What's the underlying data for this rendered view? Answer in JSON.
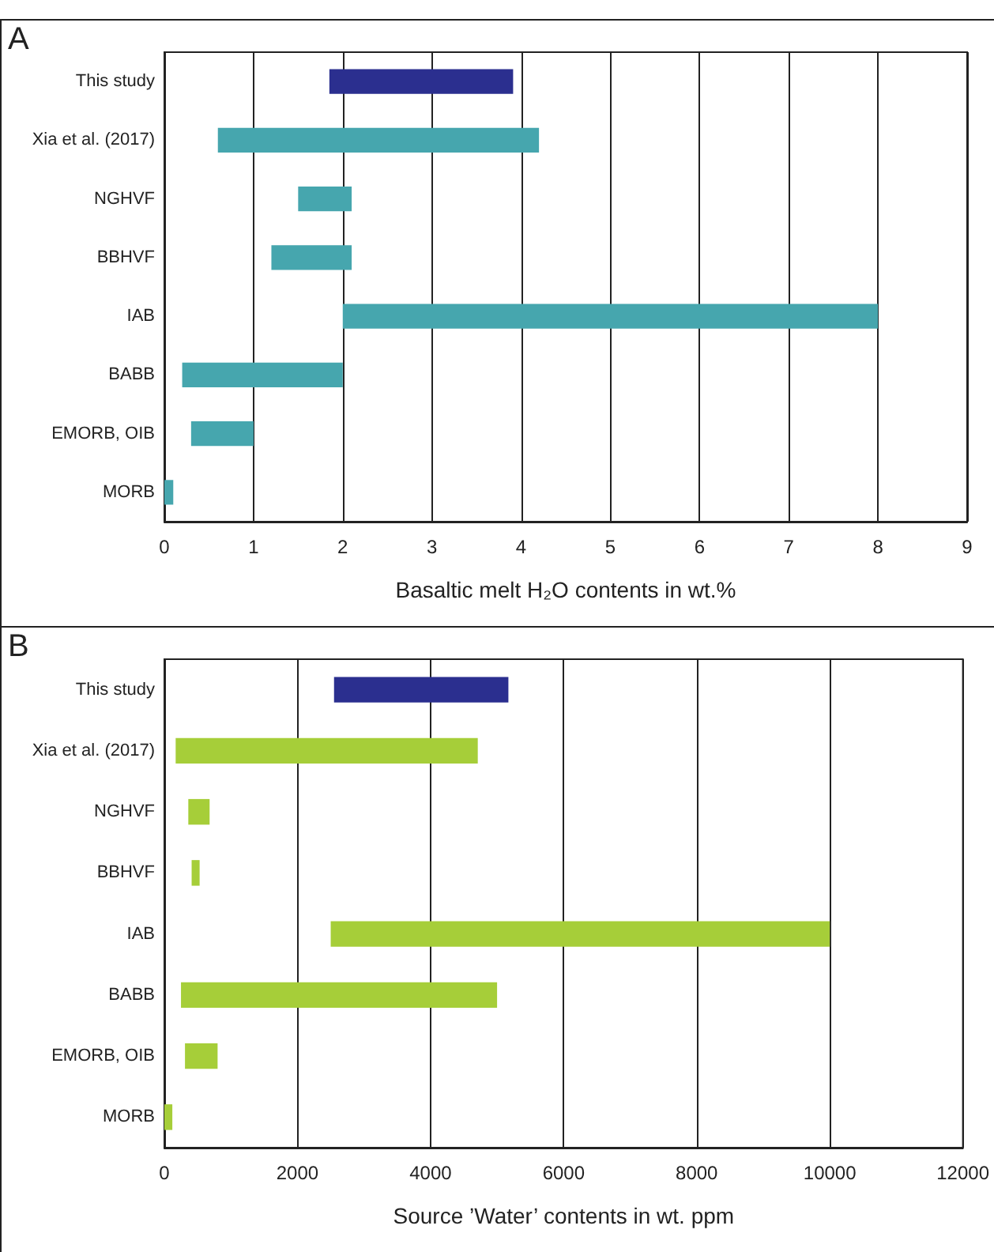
{
  "chart_data": [
    {
      "type": "bar",
      "orientation": "horizontal",
      "annotations": [
        "A"
      ],
      "xlabel": "Basaltic melt H₂O contents in wt.%",
      "categories": [
        "This study",
        "Xia et al. (2017)",
        "NGHVF",
        "BBHVF",
        "IAB",
        "BABB",
        "EMORB, OIB",
        "MORB"
      ],
      "base": [
        1.85,
        0.6,
        1.5,
        1.2,
        2.0,
        0.2,
        0.3,
        0
      ],
      "values": [
        2.06,
        3.6,
        0.6,
        0.9,
        6.0,
        1.8,
        0.7,
        0.1
      ],
      "colors": [
        "#2b2f8f",
        "#46a6ae",
        "#46a6ae",
        "#46a6ae",
        "#46a6ae",
        "#46a6ae",
        "#46a6ae",
        "#46a6ae"
      ],
      "xlim": [
        0,
        9
      ],
      "xticks": [
        0,
        1,
        2,
        3,
        4,
        5,
        6,
        7,
        8,
        9
      ],
      "grid": "x"
    },
    {
      "type": "bar",
      "orientation": "horizontal",
      "annotations": [
        "B"
      ],
      "xlabel": "Source ’Water’ contents in wt. ppm",
      "categories": [
        "This study",
        "Xia et al. (2017)",
        "NGHVF",
        "BBHVF",
        "IAB",
        "BABB",
        "EMORB, OIB",
        "MORB"
      ],
      "base": [
        2550,
        170,
        360,
        410,
        2500,
        250,
        310,
        0
      ],
      "values": [
        2620,
        4540,
        320,
        120,
        7500,
        4750,
        490,
        120
      ],
      "colors": [
        "#2b2f8f",
        "#a6ce39",
        "#a6ce39",
        "#a6ce39",
        "#a6ce39",
        "#a6ce39",
        "#a6ce39",
        "#a6ce39"
      ],
      "xlim": [
        0,
        12000
      ],
      "xticks": [
        0,
        2000,
        4000,
        6000,
        8000,
        10000,
        12000
      ],
      "grid": "x"
    }
  ]
}
